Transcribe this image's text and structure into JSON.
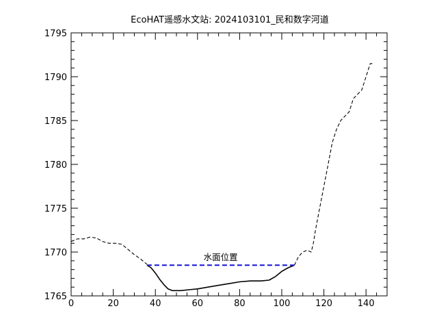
{
  "chart_data": {
    "type": "line",
    "title": "EcoHAT遥感水文站: 2024103101_民和数字河道",
    "xlabel": "",
    "ylabel": "",
    "xlim": [
      0,
      150
    ],
    "ylim": [
      1765,
      1795
    ],
    "x_ticks": [
      0,
      20,
      40,
      60,
      80,
      100,
      120,
      140
    ],
    "y_ticks": [
      1765,
      1770,
      1775,
      1780,
      1785,
      1790,
      1795
    ],
    "x_tick_labels": [
      "0",
      "20",
      "40",
      "60",
      "80",
      "100",
      "120",
      "140"
    ],
    "y_tick_labels": [
      "1765",
      "1770",
      "1775",
      "1780",
      "1785",
      "1790",
      "1795"
    ],
    "grid": false,
    "series": [
      {
        "style": "dashed",
        "color": "#000000",
        "x": [
          0,
          3,
          6,
          9,
          12,
          15,
          18,
          21,
          24,
          27,
          30,
          33,
          36
        ],
        "y": [
          1771.2,
          1771.5,
          1771.5,
          1771.7,
          1771.6,
          1771.2,
          1771.0,
          1771.0,
          1770.9,
          1770.3,
          1769.7,
          1769.2,
          1768.6
        ]
      },
      {
        "style": "solid",
        "color": "#000000",
        "x": [
          36,
          38,
          40,
          42,
          44,
          46,
          48,
          52,
          56,
          60,
          65,
          70,
          75,
          80,
          85,
          90,
          94,
          97,
          100,
          103,
          106
        ],
        "y": [
          1768.5,
          1768.2,
          1767.6,
          1766.9,
          1766.3,
          1765.8,
          1765.6,
          1765.6,
          1765.7,
          1765.8,
          1766.0,
          1766.2,
          1766.4,
          1766.6,
          1766.7,
          1766.7,
          1766.8,
          1767.2,
          1767.8,
          1768.2,
          1768.5
        ],
        "fill_below": "#ffffff"
      },
      {
        "style": "dashed",
        "color": "#000000",
        "x": [
          106,
          108,
          110,
          112,
          114,
          115,
          116,
          118,
          120,
          122,
          124,
          126,
          128,
          130,
          132,
          134,
          136,
          138,
          140,
          142,
          143
        ],
        "y": [
          1768.5,
          1769.5,
          1770.0,
          1770.2,
          1770.0,
          1771.0,
          1772.5,
          1775.0,
          1777.5,
          1780.0,
          1782.5,
          1784.0,
          1785.0,
          1785.5,
          1786.0,
          1787.5,
          1788.0,
          1788.5,
          1790.0,
          1791.5,
          1791.5
        ]
      },
      {
        "name": "水面位置",
        "style": "dashed",
        "color": "#1f1fd6",
        "x": [
          36,
          106
        ],
        "y": [
          1768.5,
          1768.5
        ]
      }
    ],
    "annotations": [
      {
        "text": "水面位置",
        "x": 71,
        "y": 1768.9
      }
    ]
  }
}
